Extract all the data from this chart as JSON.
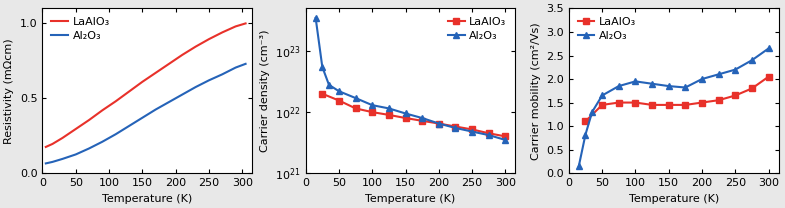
{
  "panel1": {
    "xlabel": "Temperature (K)",
    "ylabel": "Resistivity (mΩcm)",
    "xlim": [
      0,
      315
    ],
    "ylim": [
      0,
      1.1
    ],
    "yticks": [
      0.0,
      0.5,
      1.0
    ],
    "xticks": [
      0,
      50,
      100,
      150,
      200,
      250,
      300
    ],
    "lao_T": [
      5,
      15,
      30,
      50,
      70,
      90,
      110,
      130,
      150,
      170,
      190,
      210,
      230,
      250,
      270,
      290,
      305
    ],
    "lao_R": [
      0.175,
      0.195,
      0.235,
      0.295,
      0.355,
      0.42,
      0.48,
      0.545,
      0.61,
      0.67,
      0.73,
      0.79,
      0.845,
      0.895,
      0.94,
      0.98,
      1.0
    ],
    "al2o3_T": [
      5,
      15,
      30,
      50,
      70,
      90,
      110,
      130,
      150,
      170,
      190,
      210,
      230,
      250,
      270,
      290,
      305
    ],
    "al2o3_R": [
      0.065,
      0.075,
      0.095,
      0.125,
      0.165,
      0.21,
      0.26,
      0.315,
      0.37,
      0.425,
      0.475,
      0.525,
      0.575,
      0.62,
      0.66,
      0.705,
      0.73
    ],
    "lao_color": "#e8312a",
    "al2o3_color": "#2563b8",
    "legend_labels": [
      "LaAlO₃",
      "Al₂O₃"
    ]
  },
  "panel2": {
    "xlabel": "Temperature (K)",
    "ylabel": "Carrier density (cm⁻³)",
    "xlim": [
      0,
      315
    ],
    "ylim_log": [
      1e+21,
      5e+23
    ],
    "xticks": [
      0,
      50,
      100,
      150,
      200,
      250,
      300
    ],
    "lao_T": [
      25,
      50,
      75,
      100,
      125,
      150,
      175,
      200,
      225,
      250,
      275,
      300
    ],
    "lao_n": [
      2e+22,
      1.55e+22,
      1.15e+22,
      1e+22,
      9e+21,
      8e+21,
      7.2e+21,
      6.5e+21,
      5.8e+21,
      5.2e+21,
      4.5e+21,
      4e+21
    ],
    "al2o3_T": [
      15,
      25,
      35,
      50,
      75,
      100,
      125,
      150,
      175,
      200,
      225,
      250,
      275,
      300
    ],
    "al2o3_n": [
      3.5e+23,
      5.5e+22,
      2.8e+22,
      2.2e+22,
      1.7e+22,
      1.3e+22,
      1.15e+22,
      9.5e+21,
      8e+21,
      6.5e+21,
      5.5e+21,
      4.8e+21,
      4.2e+21,
      3.5e+21
    ],
    "lao_color": "#e8312a",
    "al2o3_color": "#2563b8",
    "legend_labels": [
      "LaAlO₃",
      "Al₂O₃"
    ]
  },
  "panel3": {
    "xlabel": "Temperature (K)",
    "ylabel": "Carrier mobility (cm²/Vs)",
    "xlim": [
      0,
      315
    ],
    "ylim": [
      0,
      3.5
    ],
    "yticks": [
      0.0,
      0.5,
      1.0,
      1.5,
      2.0,
      2.5,
      3.0,
      3.5
    ],
    "xticks": [
      0,
      50,
      100,
      150,
      200,
      250,
      300
    ],
    "lao_T": [
      25,
      50,
      75,
      100,
      125,
      150,
      175,
      200,
      225,
      250,
      275,
      300
    ],
    "lao_mob": [
      1.1,
      1.45,
      1.5,
      1.5,
      1.45,
      1.45,
      1.45,
      1.5,
      1.55,
      1.65,
      1.8,
      2.05
    ],
    "al2o3_T": [
      15,
      25,
      35,
      50,
      75,
      100,
      125,
      150,
      175,
      200,
      225,
      250,
      275,
      300
    ],
    "al2o3_mob": [
      0.15,
      0.82,
      1.3,
      1.65,
      1.85,
      1.95,
      1.9,
      1.85,
      1.82,
      2.0,
      2.1,
      2.2,
      2.4,
      2.65
    ],
    "lao_color": "#e8312a",
    "al2o3_color": "#2563b8",
    "legend_labels": [
      "LaAlO₃",
      "Al₂O₃"
    ]
  },
  "fig_bgcolor": "#e8e8e8",
  "axes_bgcolor": "#ffffff",
  "marker_lao": "s",
  "marker_al2o3": "^",
  "markersize": 4,
  "linewidth": 1.5,
  "fontsize": 8,
  "tick_fontsize": 8,
  "legend_fontsize": 8
}
